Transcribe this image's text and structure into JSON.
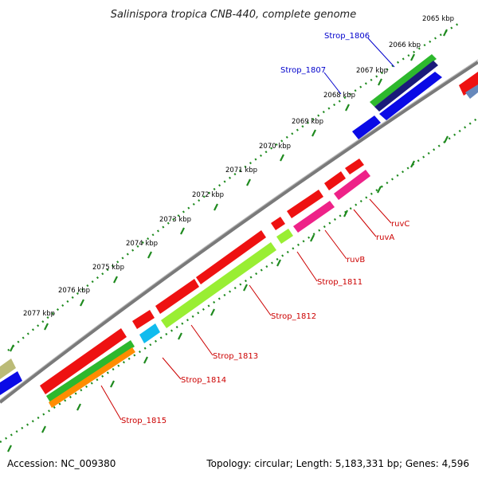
{
  "title": "Salinispora tropica CNB-440, complete genome",
  "footer": {
    "accession": "Accession: NC_009380",
    "summary": "Topology: circular; Length: 5,183,331 bp; Genes: 4,596"
  },
  "colors": {
    "backbone": "#7a7a7a",
    "tick": "#1e8a1e",
    "label_forward": "#0000cc",
    "label_reverse": "#cc0000"
  },
  "kbp_labels": [
    "2065 kbp",
    "2066 kbp",
    "2067 kbp",
    "2068 kbp",
    "2069 kbp",
    "2070 kbp",
    "2071 kbp",
    "2072 kbp",
    "2073 kbp",
    "2074 kbp",
    "2075 kbp",
    "2076 kbp",
    "2077 kbp"
  ],
  "genes": [
    {
      "name": "Strop_1806",
      "strand": "forward",
      "color": "#2db82d",
      "labeled": true
    },
    {
      "name": "Strop_1807",
      "strand": "forward",
      "color": "#0a0ae6",
      "labeled": true
    },
    {
      "name": "ruvC",
      "strand": "reverse",
      "color": "#ee2288",
      "labeled": true
    },
    {
      "name": "ruvA",
      "strand": "reverse",
      "color": "#ee2288",
      "labeled": true
    },
    {
      "name": "ruvB",
      "strand": "reverse",
      "color": "#ee2288",
      "labeled": true
    },
    {
      "name": "Strop_1811",
      "strand": "reverse",
      "color": "#99ee33",
      "labeled": true
    },
    {
      "name": "Strop_1812",
      "strand": "reverse",
      "color": "#99ee33",
      "labeled": true
    },
    {
      "name": "Strop_1813",
      "strand": "reverse",
      "color": "#11bbee",
      "labeled": true
    },
    {
      "name": "Strop_1814",
      "strand": "reverse",
      "color": "#2db82d",
      "labeled": true
    },
    {
      "name": "Strop_1815",
      "strand": "reverse",
      "color": "#ff8c00",
      "labeled": true
    }
  ]
}
